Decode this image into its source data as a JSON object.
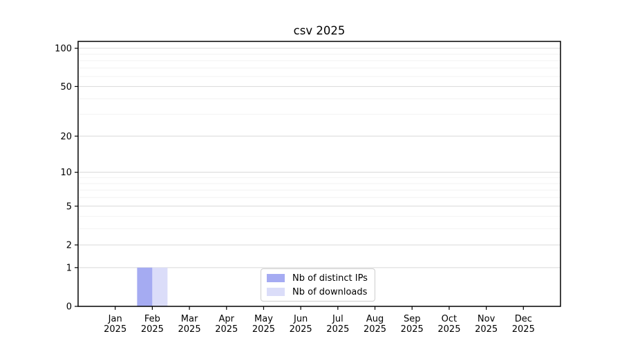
{
  "figure": {
    "background": "#ffffff",
    "text_color": "#000000",
    "spine_color": "#000000"
  },
  "chart_data": {
    "type": "bar",
    "title": "csv 2025",
    "x_tick_labels": [
      [
        "Jan",
        "2025"
      ],
      [
        "Feb",
        "2025"
      ],
      [
        "Mar",
        "2025"
      ],
      [
        "Apr",
        "2025"
      ],
      [
        "May",
        "2025"
      ],
      [
        "Jun",
        "2025"
      ],
      [
        "Jul",
        "2025"
      ],
      [
        "Aug",
        "2025"
      ],
      [
        "Sep",
        "2025"
      ],
      [
        "Oct",
        "2025"
      ],
      [
        "Nov",
        "2025"
      ],
      [
        "Dec",
        "2025"
      ]
    ],
    "series": [
      {
        "name": "Nb of distinct IPs",
        "color": "#a5abf2",
        "values": [
          0,
          1,
          0,
          0,
          0,
          0,
          0,
          0,
          0,
          0,
          0,
          0
        ]
      },
      {
        "name": "Nb of downloads",
        "color": "#dbddf9",
        "values": [
          0,
          1,
          0,
          0,
          0,
          0,
          0,
          0,
          0,
          0,
          0,
          0
        ]
      }
    ],
    "y_axis": {
      "scale": "log1p",
      "major_ticks": [
        0,
        1,
        2,
        5,
        10,
        20,
        50,
        100
      ],
      "minor_ticks": [
        3,
        4,
        6,
        7,
        8,
        9,
        30,
        40,
        60,
        70,
        80,
        90
      ],
      "ylim": [
        0,
        100
      ]
    },
    "grid": {
      "major_color": "#d8d8d8",
      "minor_color": "#f2f2f2"
    },
    "legend": {
      "position": "lower center",
      "border_color": "#cccccc"
    }
  }
}
